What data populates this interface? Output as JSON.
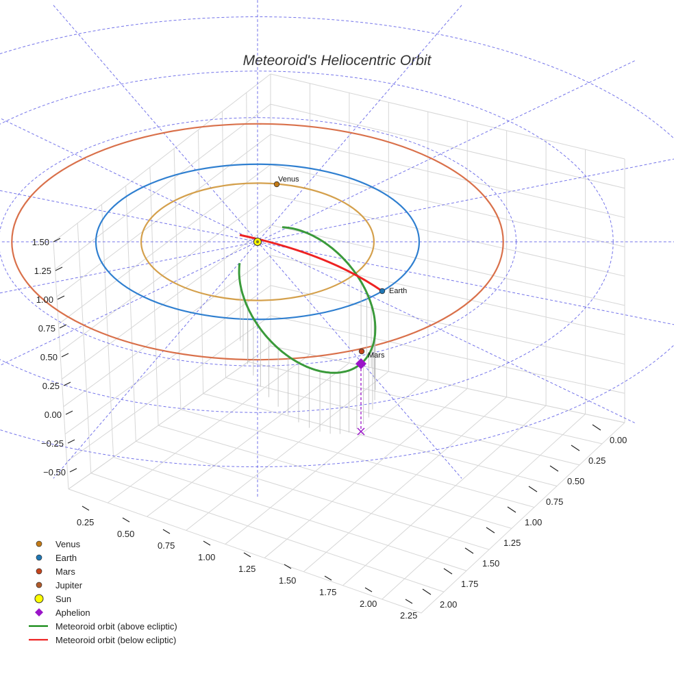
{
  "chart_data": {
    "type": "line",
    "projection": "3d",
    "title": "Meteoroid's Heliocentric Orbit",
    "z_axis": {
      "ticks": [
        "1.50",
        "1.25",
        "1.00",
        "0.75",
        "0.50",
        "0.25",
        "0.00",
        "−0.25",
        "−0.50"
      ],
      "range": [
        -0.5,
        1.5
      ]
    },
    "x_axis": {
      "ticks": [
        "0.25",
        "0.50",
        "0.75",
        "1.00",
        "1.25",
        "1.50",
        "1.75",
        "2.00",
        "2.25"
      ],
      "range": [
        0.25,
        2.25
      ]
    },
    "y_axis": {
      "ticks": [
        "0.00",
        "0.25",
        "0.50",
        "0.75",
        "1.00",
        "1.25",
        "1.50",
        "1.75",
        "2.00"
      ],
      "range": [
        0.0,
        2.0
      ]
    },
    "planet_orbits": [
      {
        "name": "Venus",
        "a_au": 0.72,
        "color": "#d4a04c"
      },
      {
        "name": "Earth",
        "a_au": 1.0,
        "color": "#2f7fd0"
      },
      {
        "name": "Mars",
        "a_au": 1.52,
        "color": "#d9704a"
      }
    ],
    "ecliptic_grid": {
      "ring_radii_au": [
        1.0,
        1.6,
        2.2,
        2.9
      ],
      "radial_lines": 8,
      "color": "#5a5ae6"
    },
    "meteoroid_orbit": {
      "perihelion_au": 0.14,
      "aphelion_au": 1.98,
      "segments": [
        {
          "label": "Meteoroid orbit (above ecliptic)",
          "color": "#3a9a3a"
        },
        {
          "label": "Meteoroid orbit (below ecliptic)",
          "color": "#ee2222"
        }
      ]
    },
    "annotations": [
      {
        "label": "Venus",
        "color": "#c27a17"
      },
      {
        "label": "Earth",
        "color": "#1f77b4"
      },
      {
        "label": "Mars",
        "color": "#c4451c"
      }
    ],
    "legend": {
      "position": "bottom-left",
      "items": [
        {
          "label": "Venus",
          "marker": "dot",
          "color": "#c27a17"
        },
        {
          "label": "Earth",
          "marker": "dot",
          "color": "#1f77b4"
        },
        {
          "label": "Mars",
          "marker": "dot",
          "color": "#c4451c"
        },
        {
          "label": "Jupiter",
          "marker": "dot",
          "color": "#b05a2a"
        },
        {
          "label": "Sun",
          "marker": "sun",
          "color": "#ffff00"
        },
        {
          "label": "Aphelion",
          "marker": "diamond",
          "color": "#9a14c8"
        },
        {
          "label": "Meteoroid orbit (above ecliptic)",
          "marker": "line",
          "color": "#118811"
        },
        {
          "label": "Meteoroid orbit (below ecliptic)",
          "marker": "line",
          "color": "#ee2222"
        }
      ]
    }
  }
}
